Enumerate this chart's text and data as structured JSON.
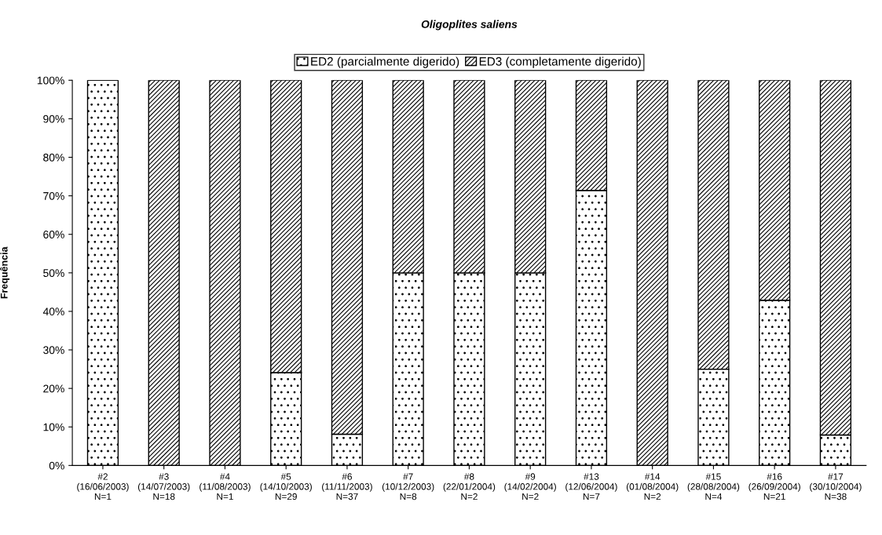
{
  "chart_data": {
    "type": "bar",
    "stacked": true,
    "title": "Oligoplites saliens",
    "ylabel": "Frequência",
    "categories": [
      "#2\n(16/06/2003)\nN=1",
      "#3\n(14/07/2003)\nN=18",
      "#4\n(11/08/2003)\nN=1",
      "#5\n(14/10/2003)\nN=29",
      "#6\n(11/11/2003)\nN=37",
      "#7\n(10/12/2003)\nN=8",
      "#8\n(22/01/2004)\nN=2",
      "#9\n(14/02/2004)\nN=2",
      "#13\n(12/06/2004)\nN=7",
      "#14\n(01/08/2004)\nN=2",
      "#15\n(28/08/2004)\nN=4",
      "#16\n(26/09/2004)\nN=21",
      "#17\n(30/10/2004)\nN=38"
    ],
    "series": [
      {
        "name": "ED2 (parcialmente digerido)",
        "color": "#000000",
        "values": [
          100,
          0,
          0,
          24.1,
          8.1,
          50,
          50,
          50,
          71.4,
          0,
          25,
          42.9,
          7.9
        ]
      },
      {
        "name": "ED3 (completamente digerido)",
        "color": "#000000",
        "values": [
          0,
          100,
          100,
          75.9,
          91.9,
          50,
          50,
          50,
          28.6,
          100,
          75,
          57.1,
          92.1
        ]
      }
    ],
    "ylim": [
      0,
      100
    ],
    "yticks": [
      {
        "value": 0,
        "label": "0%"
      },
      {
        "value": 10,
        "label": "10%"
      },
      {
        "value": 20,
        "label": "20%"
      },
      {
        "value": 30,
        "label": "30%"
      },
      {
        "value": 40,
        "label": "40%"
      },
      {
        "value": 50,
        "label": "50%"
      },
      {
        "value": 60,
        "label": "60%"
      },
      {
        "value": 70,
        "label": "70%"
      },
      {
        "value": 80,
        "label": "80%"
      },
      {
        "value": 90,
        "label": "90%"
      },
      {
        "value": 100,
        "label": "100%"
      }
    ],
    "legend": "top"
  }
}
